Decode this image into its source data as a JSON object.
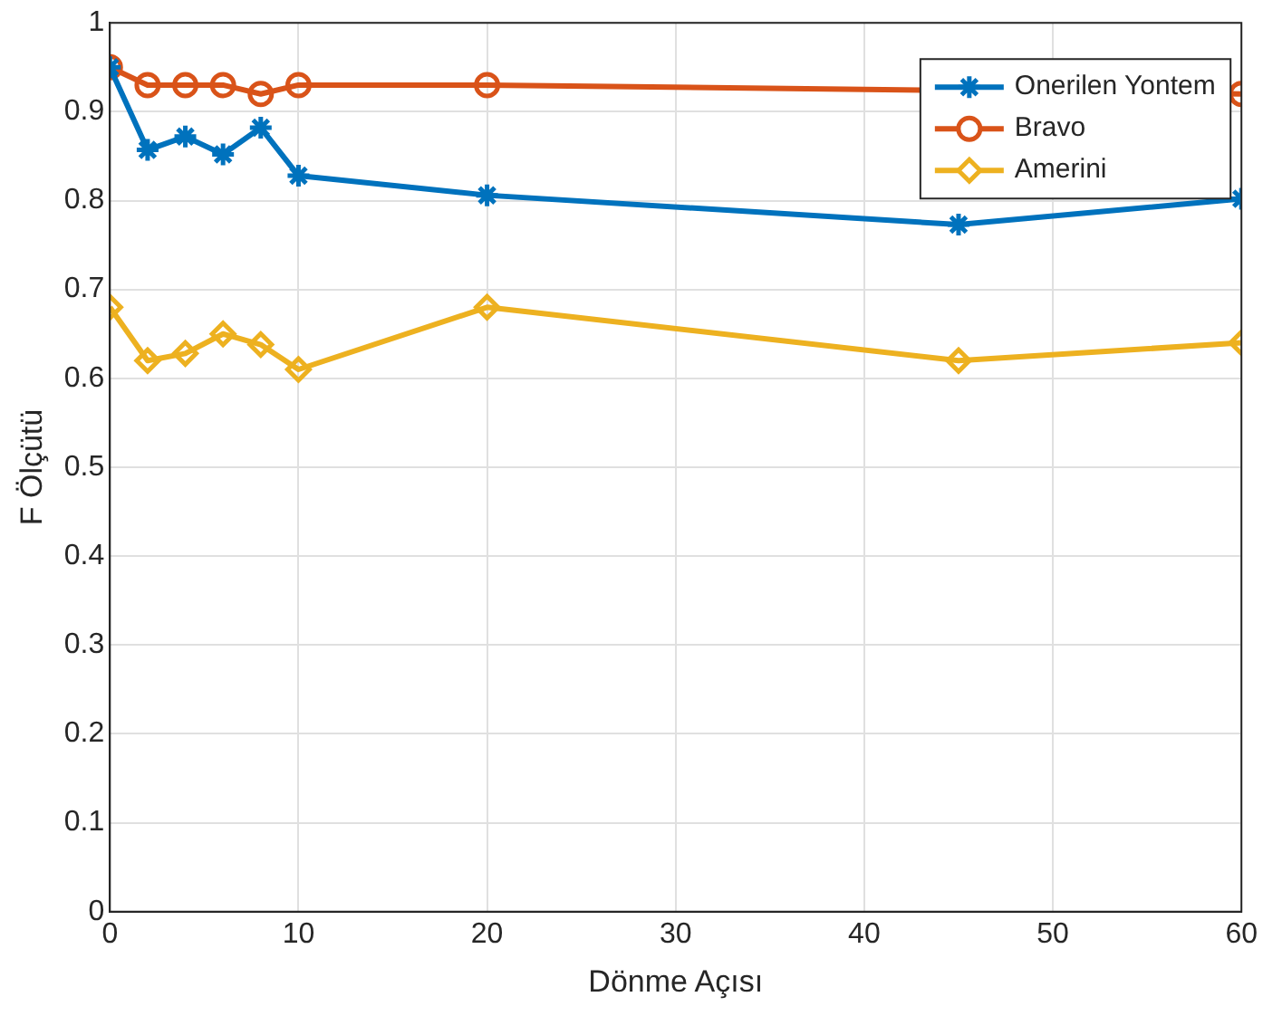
{
  "chart_data": {
    "type": "line",
    "xlabel": "Dönme Açısı",
    "ylabel": "F Ölçütü",
    "x": [
      0,
      2,
      4,
      6,
      8,
      10,
      20,
      45,
      60
    ],
    "series": [
      {
        "name": "Onerilen Yontem",
        "color": "#0072bd",
        "marker": "cross",
        "values": [
          0.95,
          0.857,
          0.872,
          0.852,
          0.882,
          0.828,
          0.806,
          0.773,
          0.802
        ]
      },
      {
        "name": "Bravo",
        "color": "#d95319",
        "marker": "circle",
        "values": [
          0.95,
          0.93,
          0.93,
          0.93,
          0.92,
          0.93,
          0.93,
          null,
          0.92
        ]
      },
      {
        "name": "Amerini",
        "color": "#edb120",
        "marker": "diamond",
        "values": [
          0.68,
          0.62,
          0.628,
          0.65,
          0.638,
          0.61,
          0.68,
          0.62,
          0.64
        ]
      }
    ],
    "xlim": [
      0,
      60
    ],
    "xticks": [
      0,
      10,
      20,
      30,
      40,
      50,
      60
    ],
    "ylim": [
      0,
      1
    ],
    "yticks": [
      0,
      0.1,
      0.2,
      0.3,
      0.4,
      0.5,
      0.6,
      0.7,
      0.8,
      0.9,
      1
    ],
    "grid": true,
    "legend": "top right",
    "line_style": "solid"
  }
}
